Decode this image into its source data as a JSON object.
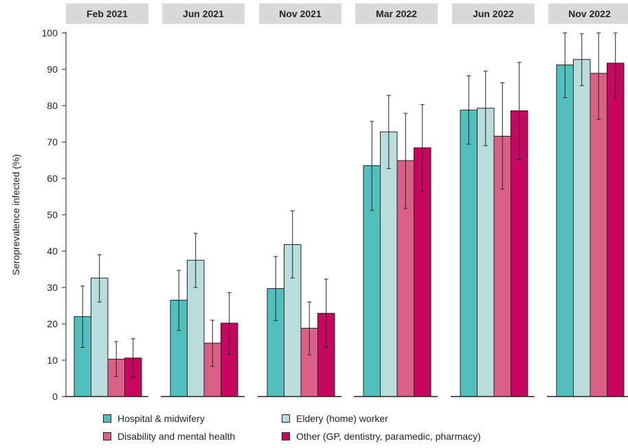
{
  "chart_data": {
    "type": "bar",
    "ylabel": "Seroprevalence infected (%)",
    "ylim": [
      0,
      100
    ],
    "yticks": [
      0,
      10,
      20,
      30,
      40,
      50,
      60,
      70,
      80,
      90,
      100
    ],
    "grid": false,
    "legend_position": "bottom",
    "colors": {
      "Hospital & midwifery": "#52bfbd",
      "Eldery (home) worker": "#b9dcdc",
      "Disability and mental health": "#db6087",
      "Other (GP, dentistry, paramedic, pharmacy)": "#c7075f"
    },
    "series_names": [
      "Hospital & midwifery",
      "Eldery (home) worker",
      "Disability and mental health",
      "Other (GP, dentistry, paramedic, pharmacy)"
    ],
    "panels": [
      {
        "title": "Feb 2021",
        "values": [
          22.0,
          32.6,
          10.3,
          10.6
        ],
        "lower": [
          13.5,
          26.0,
          5.5,
          5.3
        ],
        "upper": [
          30.4,
          39.0,
          15.1,
          15.9
        ]
      },
      {
        "title": "Jun 2021",
        "values": [
          26.5,
          37.5,
          14.7,
          20.2
        ],
        "lower": [
          18.2,
          30.0,
          8.3,
          11.6
        ],
        "upper": [
          34.7,
          44.9,
          21.0,
          28.6
        ]
      },
      {
        "title": "Nov 2021",
        "values": [
          29.7,
          41.8,
          18.8,
          22.9
        ],
        "lower": [
          20.9,
          32.6,
          11.5,
          13.5
        ],
        "upper": [
          38.5,
          51.1,
          26.0,
          32.3
        ]
      },
      {
        "title": "Mar 2022",
        "values": [
          63.5,
          72.8,
          64.9,
          68.4
        ],
        "lower": [
          51.2,
          62.7,
          51.7,
          56.4
        ],
        "upper": [
          75.7,
          82.8,
          77.9,
          80.3
        ]
      },
      {
        "title": "Jun 2022",
        "values": [
          78.8,
          79.3,
          71.6,
          78.6
        ],
        "lower": [
          69.4,
          69.0,
          57.0,
          65.2
        ],
        "upper": [
          88.2,
          89.5,
          86.3,
          91.9
        ]
      },
      {
        "title": "Nov 2022",
        "values": [
          91.2,
          92.7,
          88.9,
          91.7
        ],
        "lower": [
          82.2,
          85.5,
          76.2,
          82.0
        ],
        "upper": [
          100,
          99.8,
          100,
          100
        ]
      }
    ]
  }
}
